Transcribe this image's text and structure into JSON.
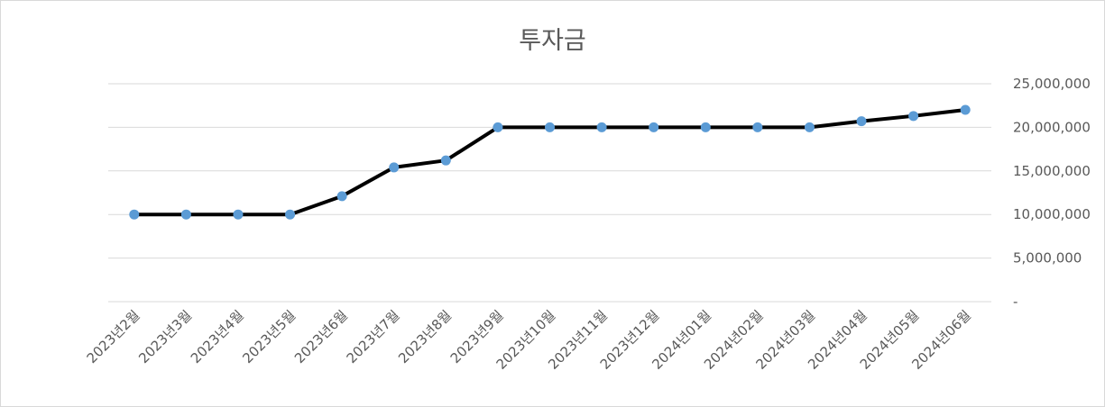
{
  "chart_data": {
    "type": "line",
    "title": "투자금",
    "xlabel": "",
    "ylabel": "",
    "categories": [
      "2023년2월",
      "2023년3월",
      "2023년4월",
      "2023년5월",
      "2023년6월",
      "2023년7월",
      "2023년8월",
      "2023년9월",
      "2023년10월",
      "2023년11월",
      "2023년12월",
      "2024년01월",
      "2024년02월",
      "2024년03월",
      "2024년04월",
      "2024년05월",
      "2024년06월"
    ],
    "series": [
      {
        "values": [
          10000000,
          10000000,
          10000000,
          10000000,
          12100000,
          15400000,
          16200000,
          20000000,
          20000000,
          20000000,
          20000000,
          20000000,
          20000000,
          20000000,
          20700000,
          21300000,
          22000000
        ]
      }
    ],
    "ylim": [
      0,
      25000000
    ],
    "y_ticks": [
      0,
      5000000,
      10000000,
      15000000,
      20000000,
      25000000
    ],
    "y_tick_labels": [
      "-",
      "5,000,000",
      "10,000,000",
      "15,000,000",
      "20,000,000",
      "25,000,000"
    ],
    "y_axis_side": "right",
    "grid": true,
    "legend": "none",
    "colors": {
      "line": "#000000",
      "marker": "#5b9bd5",
      "grid": "#d9d9d9",
      "text": "#595959"
    }
  }
}
